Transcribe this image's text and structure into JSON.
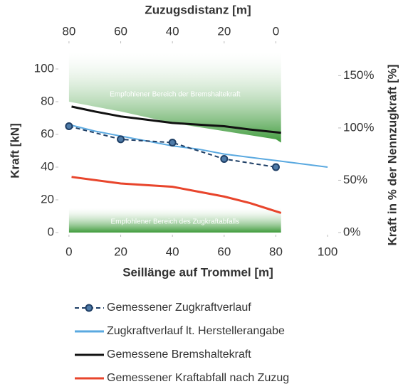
{
  "chart_data": {
    "type": "line",
    "x_label": "Seillänge auf Trommel [m]",
    "y_label": "Kraft [kN]",
    "x2_label": "Zuzugsdistanz [m]",
    "y2_label": "Kraft in % der Nennzugkraft [%]",
    "xlim": [
      -3,
      103
    ],
    "xticks": [
      0,
      20,
      40,
      60,
      80,
      100
    ],
    "x2lim": [
      83,
      -23
    ],
    "x2ticks": [
      80,
      60,
      40,
      20,
      0
    ],
    "ylim": [
      0,
      110
    ],
    "yticks": [
      0,
      20,
      40,
      60,
      80,
      100
    ],
    "y2lim": [
      0,
      172
    ],
    "y2ticks": [
      {
        "value": 0,
        "label": "0%"
      },
      {
        "value": 50,
        "label": "50%"
      },
      {
        "value": 100,
        "label": "100%"
      },
      {
        "value": 150,
        "label": "150%"
      }
    ],
    "bands": [
      {
        "label": "Empfohlener Bereich der Bremshaltekraft",
        "x": [
          0,
          20,
          40,
          60,
          80,
          82
        ],
        "lower": [
          80,
          74,
          67,
          62,
          57,
          55
        ],
        "upper": [
          110,
          110,
          110,
          110,
          110,
          110
        ]
      },
      {
        "label": "Empfohlener Bereich des Zugkraftabfalls",
        "x": [
          0,
          82
        ],
        "lower": [
          0,
          0
        ],
        "upper": [
          15,
          15
        ]
      }
    ],
    "series": [
      {
        "name": "Gemessener Zugkraftverlauf",
        "color": "#1f3f66",
        "dashed": true,
        "markers": true,
        "x": [
          0,
          20,
          40,
          60,
          80
        ],
        "values": [
          65,
          57,
          55,
          45,
          40
        ]
      },
      {
        "name": "Zugkraftverlauf lt. Herstellerangabe",
        "color": "#5aa9e0",
        "x": [
          0,
          10,
          20,
          30,
          40,
          50,
          60,
          70,
          80,
          90,
          100
        ],
        "values": [
          66,
          62,
          59,
          56,
          53,
          51,
          48,
          46,
          44,
          42,
          40
        ]
      },
      {
        "name": "Gemessene Bremshaltekraft",
        "color": "#111111",
        "x": [
          1,
          10,
          20,
          30,
          40,
          50,
          60,
          70,
          82
        ],
        "values": [
          77,
          74,
          71,
          69,
          67,
          66,
          65,
          63,
          61
        ]
      },
      {
        "name": "Gemessener Kraftabfall nach Zuzug",
        "color": "#e8452c",
        "x": [
          1,
          20,
          40,
          50,
          60,
          70,
          82
        ],
        "values": [
          34,
          30,
          28,
          25,
          22,
          18,
          12
        ]
      }
    ]
  }
}
